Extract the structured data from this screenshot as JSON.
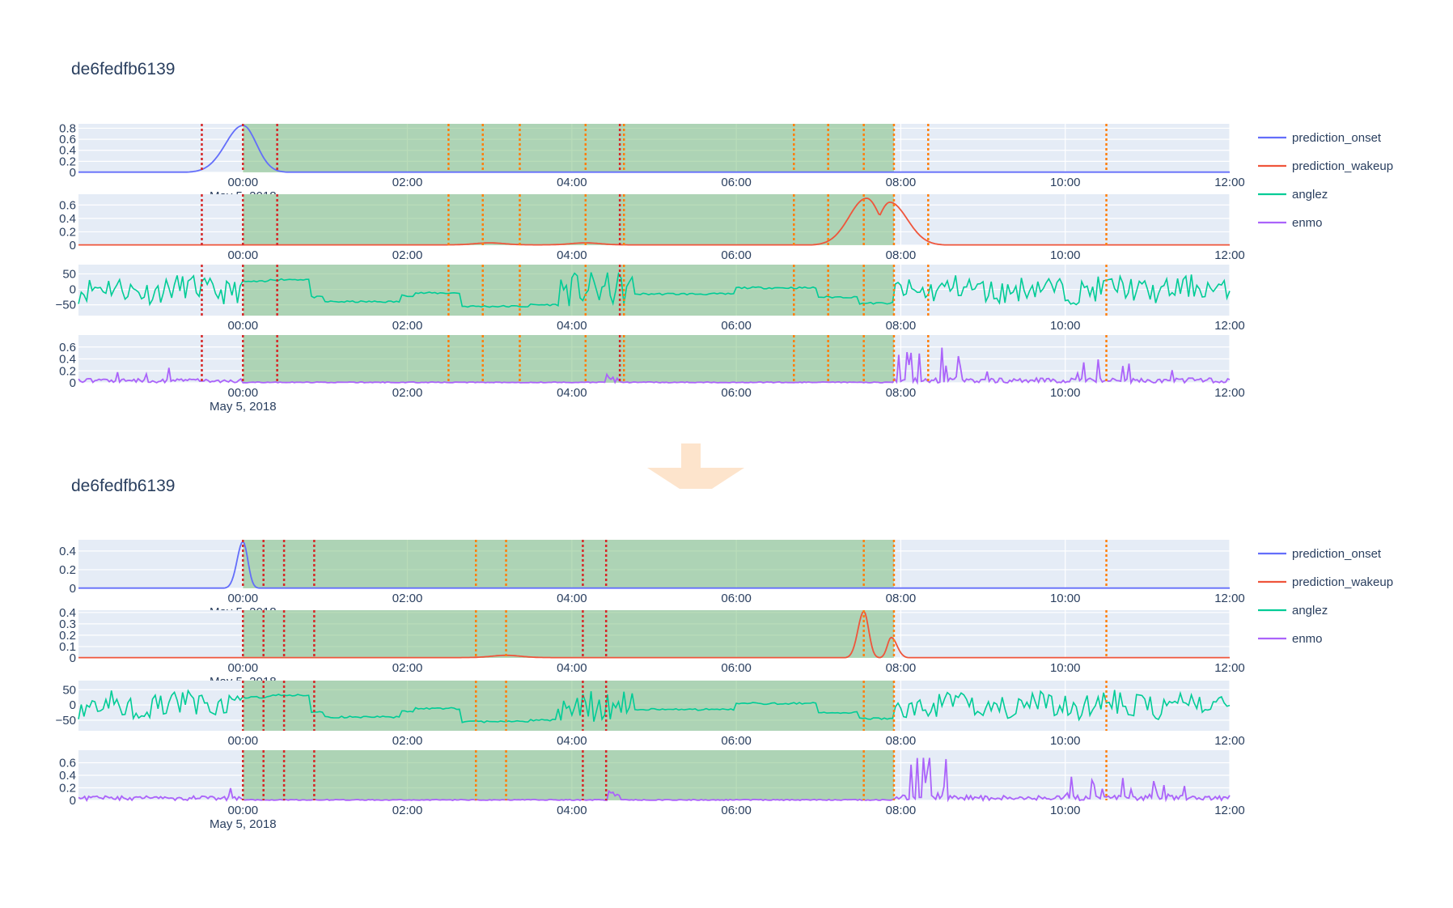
{
  "chart_data": [
    {
      "type": "line",
      "title": "de6fedfb6139",
      "x_axis": {
        "range": [
          "2018-05-04 22:00",
          "2018-05-05 12:00"
        ],
        "tick_labels": [
          "00:00",
          "02:00",
          "04:00",
          "06:00",
          "08:00",
          "10:00",
          "12:00"
        ],
        "date_label": "May 5, 2018"
      },
      "legend": {
        "placement": "right",
        "entries": [
          {
            "name": "prediction_onset",
            "color": "#636efa"
          },
          {
            "name": "prediction_wakeup",
            "color": "#ef553b"
          },
          {
            "name": "anglez",
            "color": "#00cc96"
          },
          {
            "name": "enmo",
            "color": "#ab63fa"
          }
        ]
      },
      "sleep_band": {
        "start": "2018-05-05 00:00",
        "end": "2018-05-05 07:55",
        "color": "#7fbf7f"
      },
      "event_lines": {
        "red": [
          "2018-05-04 23:30",
          "2018-05-05 00:00",
          "2018-05-05 00:25",
          "2018-05-05 04:35"
        ],
        "orange": [
          "2018-05-05 02:30",
          "2018-05-05 02:55",
          "2018-05-05 03:22",
          "2018-05-05 04:10",
          "2018-05-05 04:38",
          "2018-05-05 06:42",
          "2018-05-05 07:07",
          "2018-05-05 07:33",
          "2018-05-05 07:55",
          "2018-05-05 08:20",
          "2018-05-05 10:30"
        ]
      },
      "panels": [
        {
          "series": "prediction_onset",
          "y_ticks": [
            "0.8",
            "0.6",
            "0.4",
            "0.2",
            "0"
          ],
          "ylim": [
            0,
            0.88
          ],
          "peaks": [
            {
              "center": "2018-05-05 00:00",
              "height": 0.85,
              "width_left_min": 18,
              "width_right_min": 14
            }
          ],
          "baseline": 0.005
        },
        {
          "series": "prediction_wakeup",
          "y_ticks": [
            "0.6",
            "0.4",
            "0.2",
            "0"
          ],
          "ylim": [
            0,
            0.76
          ],
          "peaks": [
            {
              "center": "2018-05-05 07:35",
              "height": 0.7,
              "width_left_min": 18,
              "width_right_min": 14
            },
            {
              "center": "2018-05-05 07:52",
              "height": 0.64,
              "width_left_min": 12,
              "width_right_min": 18
            }
          ],
          "baseline": 0.005,
          "bumps": [
            {
              "center": "2018-05-05 03:00",
              "height": 0.03
            },
            {
              "center": "2018-05-05 04:10",
              "height": 0.03
            }
          ]
        },
        {
          "series": "anglez",
          "y_ticks": [
            "50",
            "0",
            "−50"
          ],
          "ylim": [
            -85,
            80
          ]
        },
        {
          "series": "enmo",
          "y_ticks": [
            "0.6",
            "0.4",
            "0.2",
            "0"
          ],
          "ylim": [
            0,
            0.8
          ]
        }
      ]
    },
    {
      "type": "line",
      "title": "de6fedfb6139",
      "x_axis": {
        "range": [
          "2018-05-04 22:00",
          "2018-05-05 12:00"
        ],
        "tick_labels": [
          "00:00",
          "02:00",
          "04:00",
          "06:00",
          "08:00",
          "10:00",
          "12:00"
        ],
        "date_label": "May 5, 2018"
      },
      "legend": {
        "placement": "right",
        "entries": [
          {
            "name": "prediction_onset",
            "color": "#636efa"
          },
          {
            "name": "prediction_wakeup",
            "color": "#ef553b"
          },
          {
            "name": "anglez",
            "color": "#00cc96"
          },
          {
            "name": "enmo",
            "color": "#ab63fa"
          }
        ]
      },
      "sleep_band": {
        "start": "2018-05-05 00:00",
        "end": "2018-05-05 07:55",
        "color": "#7fbf7f"
      },
      "event_lines": {
        "red": [
          "2018-05-05 00:00",
          "2018-05-05 00:15",
          "2018-05-05 00:30",
          "2018-05-05 00:52",
          "2018-05-05 04:08",
          "2018-05-05 04:25"
        ],
        "orange": [
          "2018-05-05 02:50",
          "2018-05-05 03:12",
          "2018-05-05 07:33",
          "2018-05-05 07:55",
          "2018-05-05 10:30"
        ]
      },
      "panels": [
        {
          "series": "prediction_onset",
          "y_ticks": [
            "0.4",
            "0.2",
            "0"
          ],
          "ylim": [
            0,
            0.52
          ],
          "peaks": [
            {
              "center": "2018-05-05 00:00",
              "height": 0.5,
              "width_left_min": 6,
              "width_right_min": 5
            }
          ],
          "baseline": 0.003
        },
        {
          "series": "prediction_wakeup",
          "y_ticks": [
            "0.4",
            "0.3",
            "0.2",
            "0.1",
            "0"
          ],
          "ylim": [
            0,
            0.42
          ],
          "peaks": [
            {
              "center": "2018-05-05 07:33",
              "height": 0.41,
              "width_left_min": 6,
              "width_right_min": 5
            },
            {
              "center": "2018-05-05 07:53",
              "height": 0.18,
              "width_left_min": 4,
              "width_right_min": 6
            }
          ],
          "baseline": 0.003,
          "bumps": [
            {
              "center": "2018-05-05 03:12",
              "height": 0.02
            }
          ]
        },
        {
          "series": "anglez",
          "y_ticks": [
            "50",
            "0",
            "−50"
          ],
          "ylim": [
            -85,
            80
          ]
        },
        {
          "series": "enmo",
          "y_ticks": [
            "0.6",
            "0.4",
            "0.2",
            "0"
          ],
          "ylim": [
            0,
            0.8
          ]
        }
      ]
    }
  ],
  "arrow": {
    "color": "#fde4cc"
  }
}
